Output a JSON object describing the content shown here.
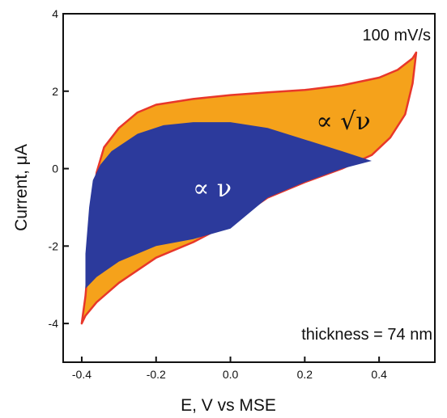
{
  "chart_data": {
    "type": "area",
    "xlabel": "E, V vs MSE",
    "ylabel": "Current, μA",
    "xlim": [
      -0.45,
      0.55
    ],
    "ylim": [
      -5,
      4
    ],
    "xticks": [
      -0.4,
      -0.2,
      0.0,
      0.2,
      0.4
    ],
    "xtick_labels": [
      "-0.4",
      "-0.2",
      "0.0",
      "0.2",
      "0.4"
    ],
    "yticks": [
      -4,
      -2,
      0,
      2,
      4
    ],
    "ytick_labels": [
      "-4",
      "-2",
      "0",
      "2",
      "4"
    ],
    "annotations": [
      "100 mV/s",
      "thickness = 74 nm"
    ],
    "regions": [
      {
        "name": "∝ √ν",
        "color": "#f5a21b",
        "outline_color": "#e8372a",
        "points": [
          [
            -0.4,
            -4.0
          ],
          [
            -0.39,
            -3.3
          ],
          [
            -0.38,
            -2.2
          ],
          [
            -0.37,
            -1.0
          ],
          [
            -0.36,
            -0.1
          ],
          [
            -0.34,
            0.55
          ],
          [
            -0.3,
            1.05
          ],
          [
            -0.25,
            1.45
          ],
          [
            -0.2,
            1.65
          ],
          [
            -0.1,
            1.8
          ],
          [
            0.0,
            1.9
          ],
          [
            0.1,
            1.97
          ],
          [
            0.2,
            2.03
          ],
          [
            0.3,
            2.15
          ],
          [
            0.4,
            2.35
          ],
          [
            0.45,
            2.55
          ],
          [
            0.49,
            2.85
          ],
          [
            0.5,
            3.0
          ],
          [
            0.49,
            2.2
          ],
          [
            0.47,
            1.4
          ],
          [
            0.43,
            0.8
          ],
          [
            0.38,
            0.35
          ],
          [
            0.3,
            0.0
          ],
          [
            0.2,
            -0.35
          ],
          [
            0.1,
            -0.75
          ],
          [
            0.0,
            -1.4
          ],
          [
            -0.1,
            -1.9
          ],
          [
            -0.2,
            -2.3
          ],
          [
            -0.3,
            -2.95
          ],
          [
            -0.36,
            -3.45
          ],
          [
            -0.39,
            -3.8
          ]
        ]
      },
      {
        "name": "∝ ν",
        "color": "#2c3a9c",
        "points": [
          [
            -0.39,
            -3.1
          ],
          [
            -0.39,
            -2.2
          ],
          [
            -0.38,
            -1.0
          ],
          [
            -0.37,
            -0.3
          ],
          [
            -0.35,
            0.1
          ],
          [
            -0.32,
            0.45
          ],
          [
            -0.25,
            0.9
          ],
          [
            -0.18,
            1.12
          ],
          [
            -0.1,
            1.2
          ],
          [
            0.0,
            1.2
          ],
          [
            0.1,
            1.05
          ],
          [
            0.2,
            0.75
          ],
          [
            0.3,
            0.45
          ],
          [
            0.38,
            0.2
          ],
          [
            0.3,
            0.0
          ],
          [
            0.2,
            -0.35
          ],
          [
            0.1,
            -0.75
          ],
          [
            0.0,
            -1.55
          ],
          [
            -0.1,
            -1.82
          ],
          [
            -0.2,
            -2.0
          ],
          [
            -0.3,
            -2.4
          ],
          [
            -0.36,
            -2.8
          ]
        ]
      }
    ]
  }
}
